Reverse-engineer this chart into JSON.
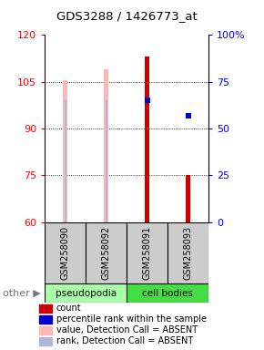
{
  "title": "GDS3288 / 1426773_at",
  "samples": [
    "GSM258090",
    "GSM258092",
    "GSM258091",
    "GSM258093"
  ],
  "ylim": [
    60,
    120
  ],
  "y2lim": [
    0,
    100
  ],
  "yticks": [
    60,
    75,
    90,
    105,
    120
  ],
  "y2ticks": [
    0,
    25,
    50,
    75,
    100
  ],
  "y2ticklabels": [
    "0",
    "25",
    "50",
    "75",
    "100%"
  ],
  "bar_width": 0.12,
  "rank_bar_width": 0.04,
  "absent_bar_color": "#ffb6b6",
  "absent_rank_color": "#b0b8d8",
  "count_color": "#cc0000",
  "rank_color": "#0000cc",
  "absent_values": [
    105.5,
    109.0,
    null,
    null
  ],
  "absent_ranks_pct": [
    65.0,
    65.0,
    null,
    null
  ],
  "count_values": [
    null,
    null,
    113.0,
    75.0
  ],
  "percentile_ranks": [
    null,
    null,
    65.0,
    57.0
  ],
  "x_positions": [
    0,
    1,
    2,
    3
  ],
  "pseudopodia_color": "#aaffaa",
  "cell_bodies_color": "#44dd44",
  "sample_box_color": "#cccccc",
  "legend_items": [
    {
      "color": "#cc0000",
      "label": "count"
    },
    {
      "color": "#0000cc",
      "label": "percentile rank within the sample"
    },
    {
      "color": "#ffb6b6",
      "label": "value, Detection Call = ABSENT"
    },
    {
      "color": "#b0b8d8",
      "label": "rank, Detection Call = ABSENT"
    }
  ]
}
